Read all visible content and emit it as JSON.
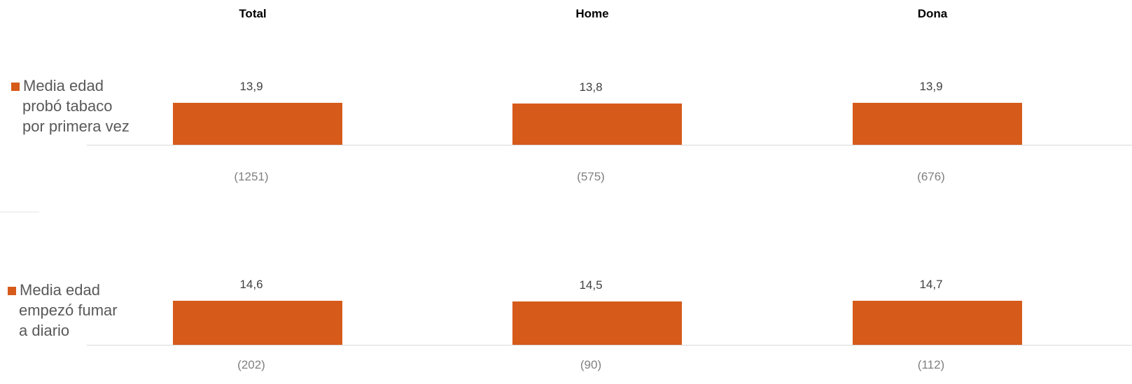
{
  "chart_data": {
    "type": "bar",
    "categories": [
      "Total",
      "Home",
      "Dona"
    ],
    "bar_color": "#d65a1a",
    "panels": [
      {
        "series_name": "Media edad probó tabaco por primera vez",
        "legend_lines": [
          "Media edad",
          "probó tabaco",
          "por primera vez"
        ],
        "values": [
          13.9,
          13.8,
          13.9
        ],
        "value_labels": [
          "13,9",
          "13,8",
          "13,9"
        ],
        "counts": [
          "(1251)",
          "(575)",
          "(676)"
        ]
      },
      {
        "series_name": "Media edad empezó fumar a diario",
        "legend_lines": [
          "Media edad",
          "empezó fumar",
          "a diario"
        ],
        "values": [
          14.6,
          14.5,
          14.7
        ],
        "value_labels": [
          "14,6",
          "14,5",
          "14,7"
        ],
        "counts": [
          "(202)",
          "(90)",
          "(112)"
        ]
      }
    ]
  }
}
